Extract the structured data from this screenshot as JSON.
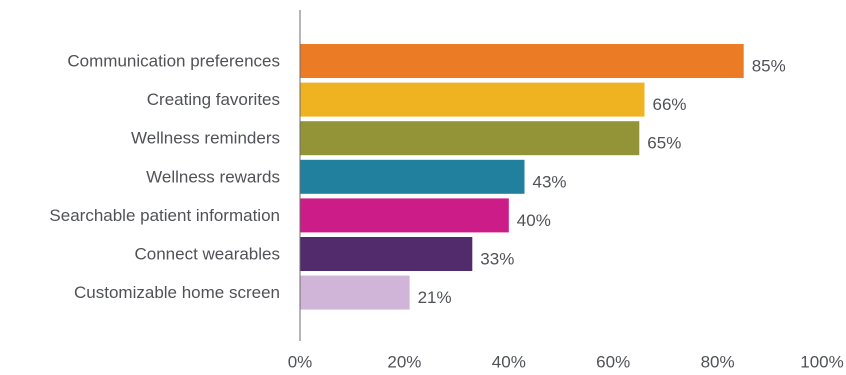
{
  "chart_data": {
    "type": "bar",
    "orientation": "horizontal",
    "categories": [
      "Communication preferences",
      "Creating favorites",
      "Wellness reminders",
      "Wellness rewards",
      "Searchable patient information",
      "Connect wearables",
      "Customizable home screen"
    ],
    "values": [
      85,
      66,
      65,
      43,
      40,
      33,
      21
    ],
    "value_labels": [
      "85%",
      "66%",
      "65%",
      "43%",
      "40%",
      "33%",
      "21%"
    ],
    "bar_colors": [
      "#ec7b25",
      "#efb322",
      "#939337",
      "#22809f",
      "#cc1c87",
      "#522b6c",
      "#d0b5d8"
    ],
    "xlim": [
      0,
      100
    ],
    "x_ticks": [
      0,
      20,
      40,
      60,
      80,
      100
    ],
    "x_tick_labels": [
      "0%",
      "20%",
      "40%",
      "60%",
      "80%",
      "100%"
    ],
    "title": "",
    "xlabel": "",
    "ylabel": "",
    "grid": false,
    "legend": "none"
  }
}
